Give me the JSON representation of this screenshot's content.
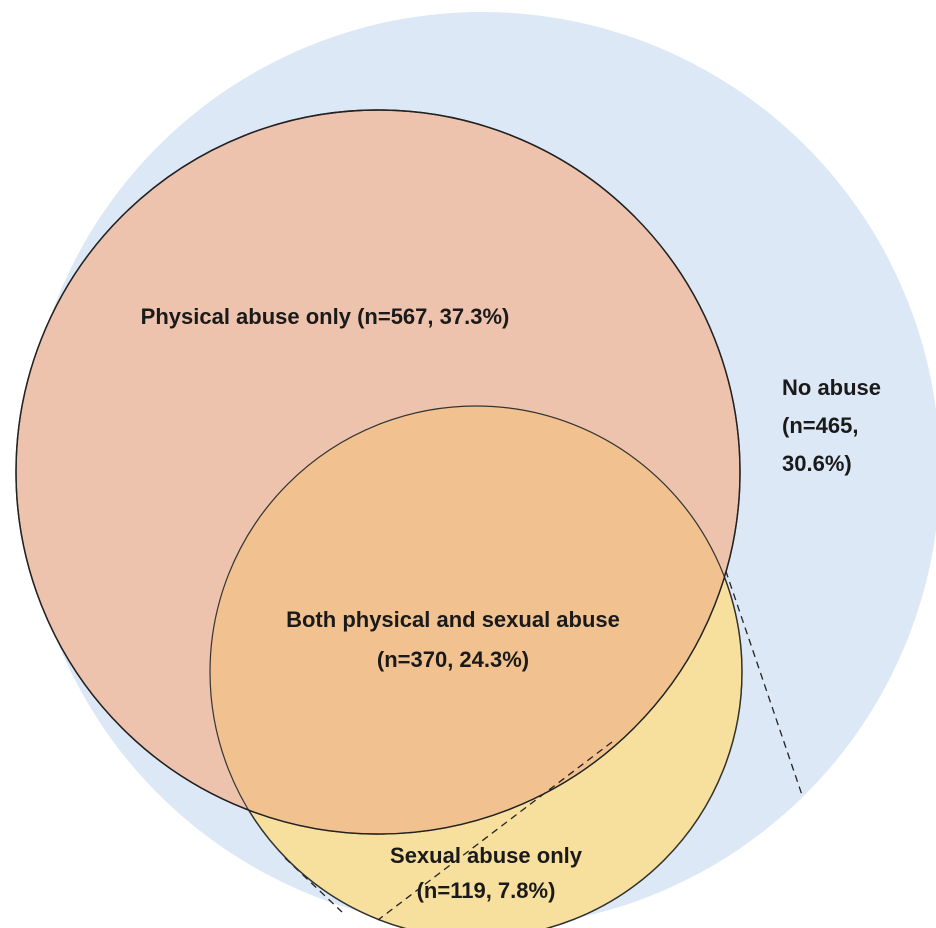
{
  "colors": {
    "no_abuse_fill": "#dce8f5",
    "physical_fill": "#edc3ad",
    "sexual_fill": "#f7df9d",
    "overlap_fill": "#f1c28f",
    "outline": "#222222"
  },
  "regions": {
    "physical_only": {
      "label": "Physical abuse only (n=567, 37.3%)"
    },
    "both": {
      "line1": "Both physical and sexual abuse",
      "line2": "(n=370, 24.3%)"
    },
    "sexual_only": {
      "line1": "Sexual abuse only",
      "line2": "(n=119, 7.8%)"
    },
    "no_abuse": {
      "line1": "No abuse",
      "line2": "(n=465,",
      "line3": "30.6%)"
    }
  }
}
